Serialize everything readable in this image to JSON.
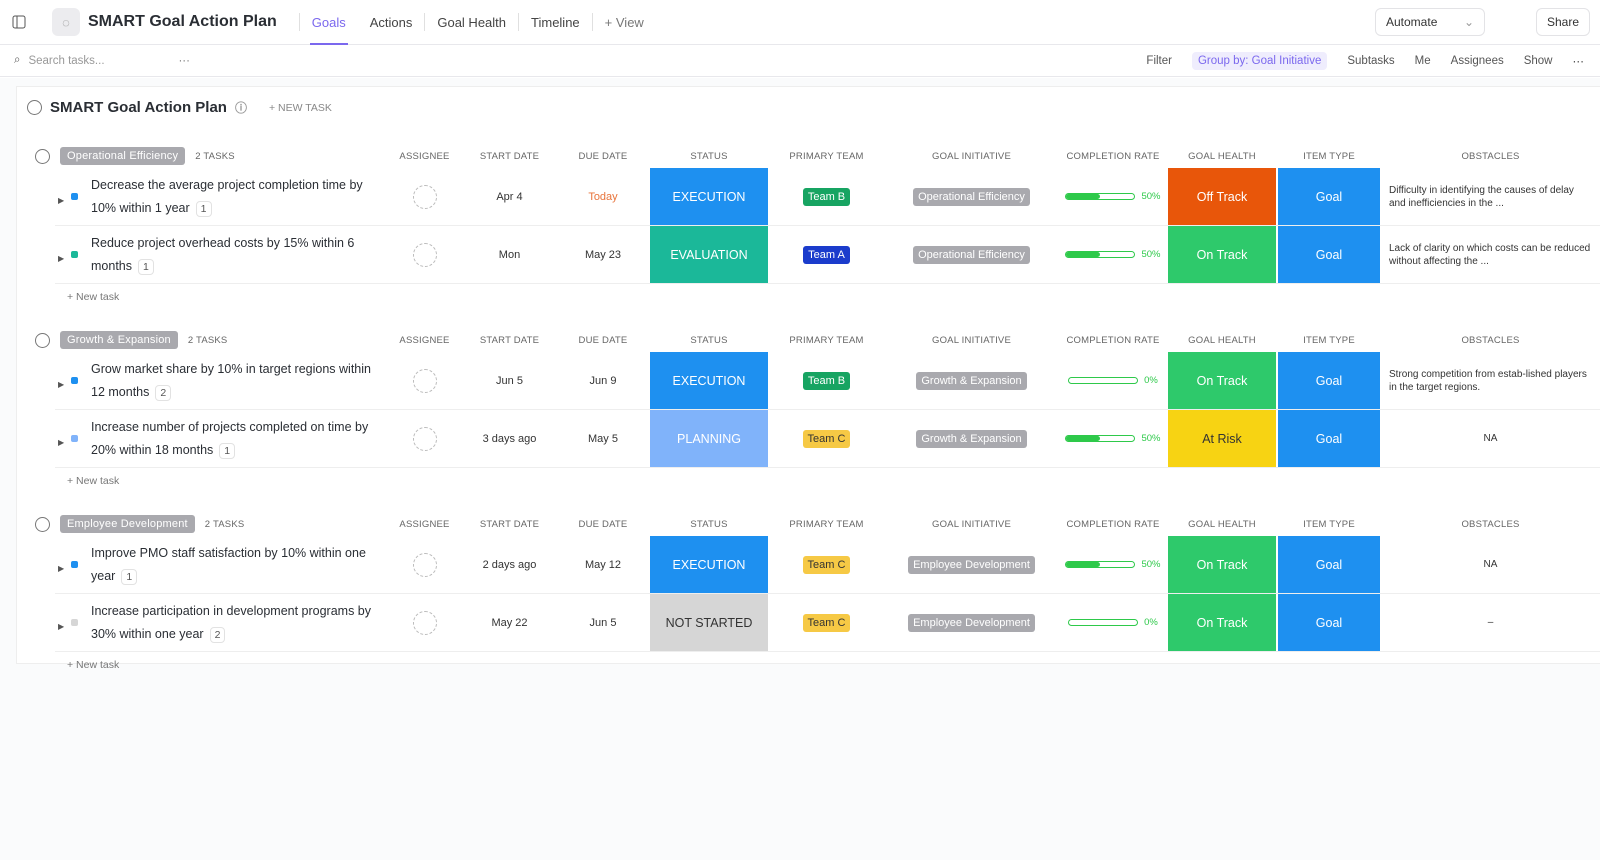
{
  "header": {
    "title": "SMART Goal Action Plan",
    "tabs": [
      "Goals",
      "Actions",
      "Goal Health",
      "Timeline",
      "+ View"
    ],
    "automate": "Automate",
    "share": "Share"
  },
  "toolbar": {
    "search_placeholder": "Search tasks...",
    "filter": "Filter",
    "group_by": "Group by: Goal Initiative",
    "subtasks": "Subtasks",
    "me": "Me",
    "assignees": "Assignees",
    "show": "Show"
  },
  "list": {
    "title": "SMART Goal Action Plan",
    "new_task": "+ NEW TASK",
    "add_task": "+ New task",
    "columns": [
      "ASSIGNEE",
      "START DATE",
      "DUE DATE",
      "STATUS",
      "PRIMARY TEAM",
      "GOAL INITIATIVE",
      "COMPLETION RATE",
      "GOAL HEALTH",
      "ITEM TYPE",
      "OBSTACLES"
    ]
  },
  "groups": [
    {
      "name": "Operational Efficiency",
      "count": "2 TASKS",
      "tasks": [
        {
          "name": "Decrease the average project completion time by 10% within 1 year",
          "subtasks": "1",
          "start": "Apr 4",
          "due": "Today",
          "due_color": "#e8743b",
          "status": "EXECUTION",
          "status_color": "#1e90f0",
          "team": "Team B",
          "team_color": "#17a462",
          "initiative": "Operational Efficiency",
          "completion": {
            "value": 50,
            "label": "50%"
          },
          "health": "Off Track",
          "health_color": "#e8560a",
          "item_type": "Goal",
          "item_color": "#1e90f0",
          "obstacles": "Difficulty in identifying the causes of delay and inefficiencies in the ..."
        },
        {
          "name": "Reduce project overhead costs by 15% within 6 months",
          "subtasks": "1",
          "start": "Mon",
          "due": "May 23",
          "status": "EVALUATION",
          "status_color": "#1bb899",
          "team": "Team A",
          "team_color": "#1b3ccc",
          "initiative": "Operational Efficiency",
          "completion": {
            "value": 50,
            "label": "50%"
          },
          "health": "On Track",
          "health_color": "#2ec96b",
          "item_type": "Goal",
          "item_color": "#1e90f0",
          "obstacles": "Lack of clarity on which costs can be reduced without affecting the ..."
        }
      ]
    },
    {
      "name": "Growth & Expansion",
      "count": "2 TASKS",
      "tasks": [
        {
          "name": "Grow market share by 10% in target regions within 12 months",
          "subtasks": "2",
          "start": "Jun 5",
          "due": "Jun 9",
          "status": "EXECUTION",
          "status_color": "#1e90f0",
          "team": "Team B",
          "team_color": "#17a462",
          "initiative": "Growth & Expansion",
          "completion": {
            "value": 0,
            "label": "0%"
          },
          "health": "On Track",
          "health_color": "#2ec96b",
          "item_type": "Goal",
          "item_color": "#1e90f0",
          "obstacles": "Strong competition from estab-lished players in the target regions."
        },
        {
          "name": "Increase number of projects completed on time by 20% within 18 months",
          "subtasks": "1",
          "start": "3 days ago",
          "due": "May 5",
          "status": "PLANNING",
          "status_color": "#80b3fa",
          "team": "Team C",
          "team_color": "#f6c945",
          "initiative": "Growth & Expansion",
          "completion": {
            "value": 50,
            "label": "50%"
          },
          "health": "At Risk",
          "health_color": "#f7d313",
          "item_type": "Goal",
          "item_color": "#1e90f0",
          "obstacles": "NA"
        }
      ]
    },
    {
      "name": "Employee Development",
      "count": "2 TASKS",
      "tasks": [
        {
          "name": "Improve PMO staff satisfaction by 10% within one year",
          "subtasks": "1",
          "start": "2 days ago",
          "due": "May 12",
          "status": "EXECUTION",
          "status_color": "#1e90f0",
          "team": "Team C",
          "team_color": "#f6c945",
          "initiative": "Employee Development",
          "completion": {
            "value": 50,
            "label": "50%"
          },
          "health": "On Track",
          "health_color": "#2ec96b",
          "item_type": "Goal",
          "item_color": "#1e90f0",
          "obstacles": "NA"
        },
        {
          "name": "Increase participation in development programs by 30% within one year",
          "subtasks": "2",
          "start": "May 22",
          "due": "Jun 5",
          "status": "NOT STARTED",
          "status_color": "#d6d6d6",
          "team": "Team C",
          "team_color": "#f6c945",
          "initiative": "Employee Development",
          "completion": {
            "value": 0,
            "label": "0%"
          },
          "health": "On Track",
          "health_color": "#2ec96b",
          "item_type": "Goal",
          "item_color": "#1e90f0",
          "obstacles": "–"
        }
      ]
    }
  ]
}
